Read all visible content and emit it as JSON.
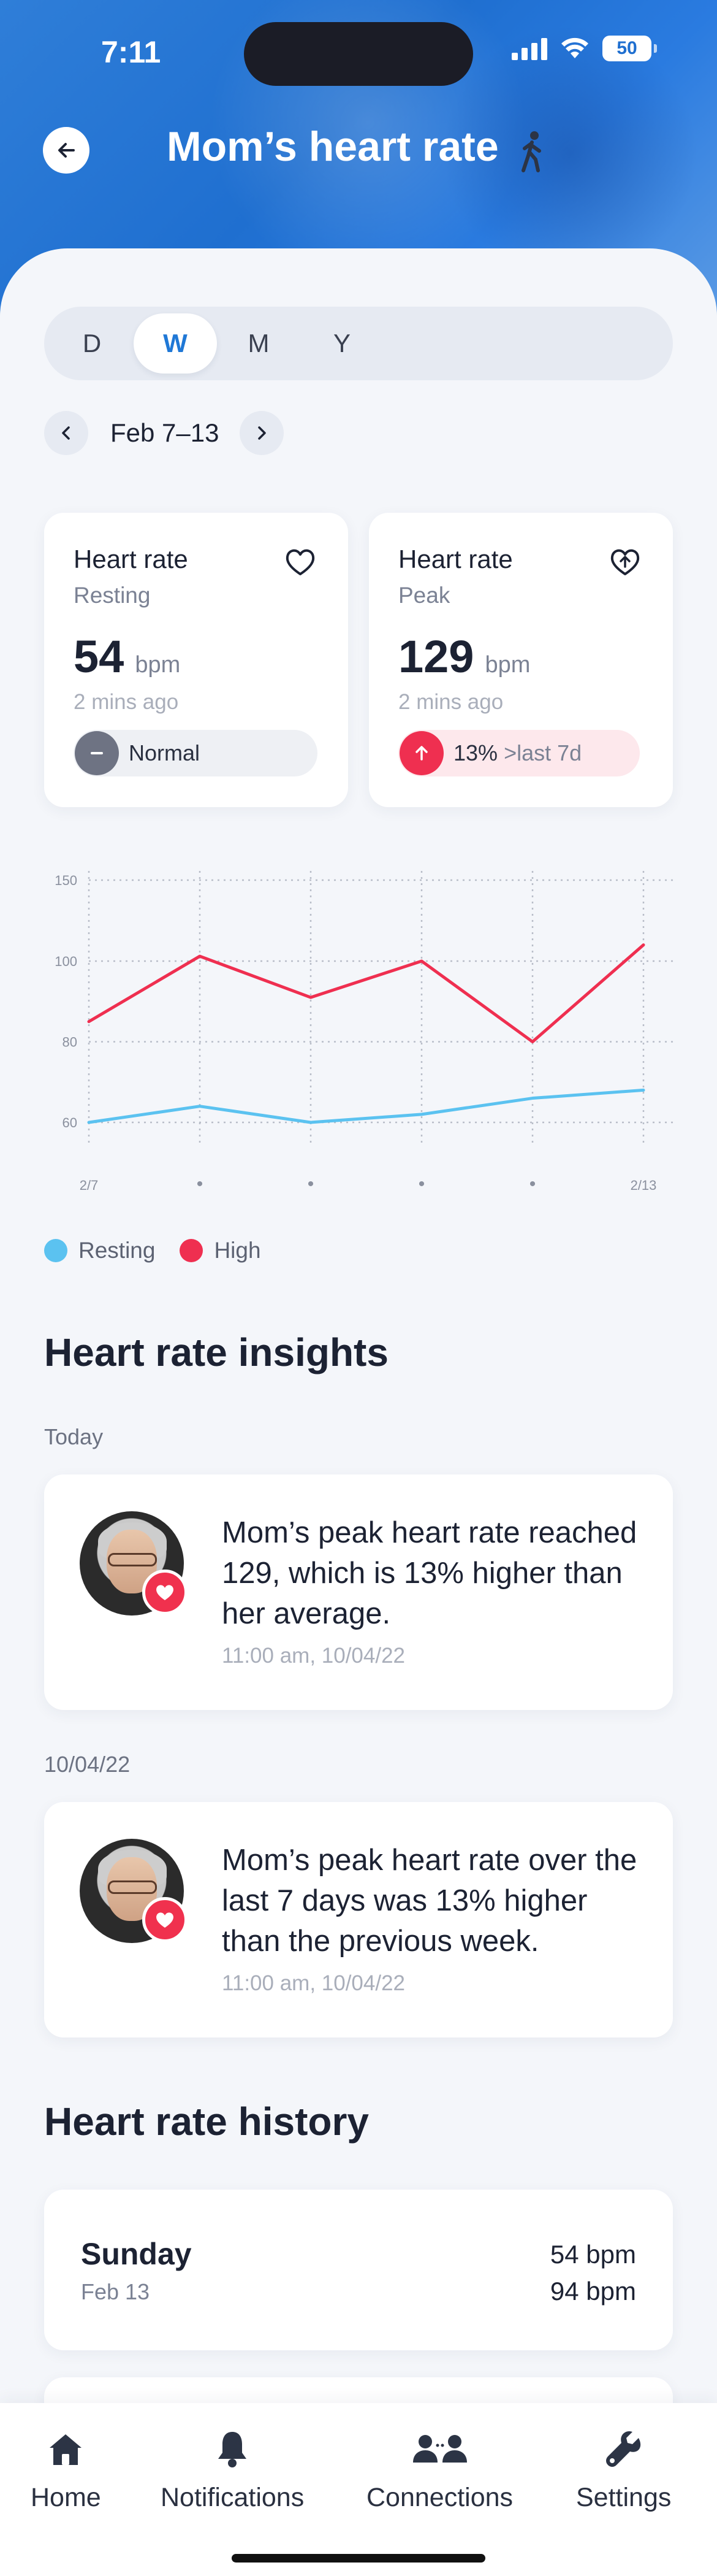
{
  "status_bar": {
    "time": "7:11",
    "battery": "50"
  },
  "header": {
    "title": "Mom’s heart rate"
  },
  "period_tabs": [
    {
      "label": "D",
      "active": false
    },
    {
      "label": "W",
      "active": true
    },
    {
      "label": "M",
      "active": false
    },
    {
      "label": "Y",
      "active": false
    }
  ],
  "date_range": "Feb 7–13",
  "stats": {
    "resting": {
      "title": "Heart rate",
      "subtitle": "Resting",
      "value": "54",
      "unit": "bpm",
      "time": "2 mins ago",
      "status": "Normal"
    },
    "peak": {
      "title": "Heart rate",
      "subtitle": "Peak",
      "value": "129",
      "unit": "bpm",
      "time": "2 mins ago",
      "change": "13%",
      "change_note": ">last 7d"
    }
  },
  "chart_data": {
    "type": "line",
    "x": [
      "2/7",
      "•",
      "•",
      "•",
      "•",
      "2/13"
    ],
    "y_ticks": [
      60,
      80,
      100,
      150
    ],
    "series": [
      {
        "name": "Resting",
        "color": "#5bc2f0",
        "values": [
          60,
          64,
          60,
          62,
          66,
          68
        ]
      },
      {
        "name": "High",
        "color": "#ef2f50",
        "values": [
          85,
          103,
          91,
          100,
          80,
          110
        ]
      }
    ]
  },
  "legend": [
    {
      "label": "Resting",
      "color": "#5bc2f0"
    },
    {
      "label": "High",
      "color": "#ef2f50"
    }
  ],
  "insights": {
    "title": "Heart rate insights",
    "groups": [
      {
        "date": "Today",
        "text": "Mom’s peak heart rate reached 129, which is 13% higher than her average.",
        "time": "11:00 am, 10/04/22"
      },
      {
        "date": "10/04/22",
        "text": "Mom’s peak heart rate over the last 7 days was 13% higher than the previous week.",
        "time": "11:00 am, 10/04/22"
      }
    ]
  },
  "history": {
    "title": "Heart rate history",
    "items": [
      {
        "day": "Sunday",
        "date": "Feb 13",
        "v1": "54 bpm",
        "v2": "94 bpm"
      }
    ]
  },
  "tabbar": [
    {
      "label": "Home",
      "icon": "home-icon"
    },
    {
      "label": "Notifications",
      "icon": "bell-icon"
    },
    {
      "label": "Connections",
      "icon": "people-icon"
    },
    {
      "label": "Settings",
      "icon": "wrench-icon"
    }
  ]
}
